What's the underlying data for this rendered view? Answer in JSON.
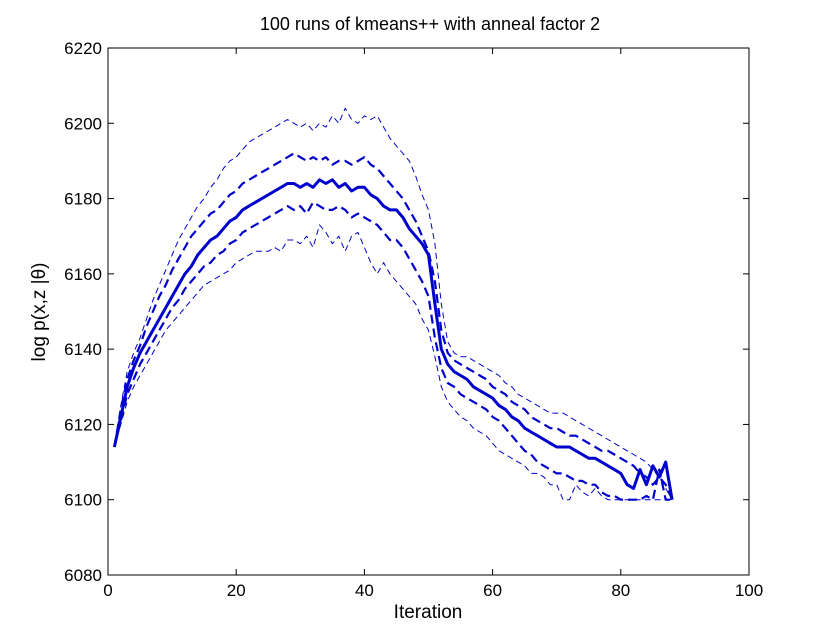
{
  "chart_data": {
    "type": "line",
    "title": "100 runs of kmeans++ with anneal factor 2",
    "xlabel": "Iteration",
    "ylabel": "log p(x,z |θ)",
    "xlim": [
      0,
      100
    ],
    "ylim": [
      6080,
      6220
    ],
    "xticks": [
      "0",
      "20",
      "40",
      "60",
      "80",
      "100"
    ],
    "yticks": [
      "6080",
      "6100",
      "6120",
      "6140",
      "6160",
      "6180",
      "6200",
      "6220"
    ],
    "grid": false,
    "legend": "none",
    "color": "#0000cc",
    "series": [
      {
        "style": "outer-dashed-thin",
        "x": [
          1,
          2,
          3,
          4,
          5,
          6,
          7,
          8,
          9,
          10,
          11,
          12,
          13,
          14,
          15,
          16,
          17,
          18,
          19,
          20,
          21,
          22,
          23,
          24,
          25,
          26,
          27,
          28,
          29,
          30,
          31,
          32,
          33,
          34,
          35,
          36,
          37,
          38,
          39,
          40,
          41,
          42,
          43,
          44,
          45,
          46,
          47,
          48,
          49,
          50,
          51,
          52,
          53,
          54,
          55,
          56,
          57,
          58,
          59,
          60,
          61,
          62,
          63,
          64,
          65,
          66,
          67,
          68,
          69,
          70,
          71,
          72,
          73,
          74,
          75,
          76,
          77,
          78,
          79,
          80,
          81,
          82,
          83,
          84,
          85,
          86,
          87,
          88
        ],
        "y": [
          6114,
          6125,
          6134,
          6139,
          6143,
          6148,
          6153,
          6157,
          6161,
          6165,
          6169,
          6172,
          6175,
          6178,
          6180,
          6183,
          6185,
          6188,
          6190,
          6191,
          6193,
          6195,
          6196,
          6197,
          6198,
          6199,
          6200,
          6201,
          6200,
          6199,
          6200,
          6198,
          6200,
          6199,
          6202,
          6200,
          6204,
          6201,
          6200,
          6202,
          6201,
          6202,
          6199,
          6196,
          6194,
          6192,
          6190,
          6186,
          6181,
          6177,
          6168,
          6152,
          6142,
          6139,
          6138,
          6138,
          6137,
          6136,
          6135,
          6134,
          6133,
          6131,
          6130,
          6128,
          6127,
          6126,
          6125,
          6124,
          6123,
          6123,
          6123,
          6122,
          6121,
          6120,
          6119,
          6118,
          6117,
          6116,
          6115,
          6114,
          6113,
          6112,
          6111,
          6110,
          6108,
          6106,
          6103,
          6100
        ]
      },
      {
        "style": "inner-dashed-thick",
        "x": [
          1,
          2,
          3,
          4,
          5,
          6,
          7,
          8,
          9,
          10,
          11,
          12,
          13,
          14,
          15,
          16,
          17,
          18,
          19,
          20,
          21,
          22,
          23,
          24,
          25,
          26,
          27,
          28,
          29,
          30,
          31,
          32,
          33,
          34,
          35,
          36,
          37,
          38,
          39,
          40,
          41,
          42,
          43,
          44,
          45,
          46,
          47,
          48,
          49,
          50,
          51,
          52,
          53,
          54,
          55,
          56,
          57,
          58,
          59,
          60,
          61,
          62,
          63,
          64,
          65,
          66,
          67,
          68,
          69,
          70,
          71,
          72,
          73,
          74,
          75,
          76,
          77,
          78,
          79,
          80,
          81,
          82,
          83,
          84,
          85,
          86,
          87,
          88
        ],
        "y": [
          6114,
          6124,
          6132,
          6137,
          6141,
          6146,
          6150,
          6154,
          6157,
          6161,
          6164,
          6167,
          6170,
          6172,
          6174,
          6176,
          6177,
          6179,
          6181,
          6182,
          6184,
          6185,
          6186,
          6187,
          6188,
          6189,
          6190,
          6191,
          6192,
          6191,
          6190,
          6191,
          6190,
          6191,
          6189,
          6190,
          6190,
          6189,
          6190,
          6191,
          6189,
          6188,
          6186,
          6184,
          6182,
          6180,
          6177,
          6174,
          6170,
          6166,
          6158,
          6145,
          6139,
          6137,
          6136,
          6135,
          6134,
          6133,
          6132,
          6130,
          6129,
          6128,
          6126,
          6125,
          6124,
          6122,
          6121,
          6120,
          6119,
          6119,
          6118,
          6117,
          6117,
          6116,
          6115,
          6114,
          6113,
          6113,
          6112,
          6111,
          6110,
          6109,
          6107,
          6106,
          6104,
          6106,
          6104,
          6100
        ]
      },
      {
        "style": "mean-solid-thick",
        "x": [
          1,
          2,
          3,
          4,
          5,
          6,
          7,
          8,
          9,
          10,
          11,
          12,
          13,
          14,
          15,
          16,
          17,
          18,
          19,
          20,
          21,
          22,
          23,
          24,
          25,
          26,
          27,
          28,
          29,
          30,
          31,
          32,
          33,
          34,
          35,
          36,
          37,
          38,
          39,
          40,
          41,
          42,
          43,
          44,
          45,
          46,
          47,
          48,
          49,
          50,
          51,
          52,
          53,
          54,
          55,
          56,
          57,
          58,
          59,
          60,
          61,
          62,
          63,
          64,
          65,
          66,
          67,
          68,
          69,
          70,
          71,
          72,
          73,
          74,
          75,
          76,
          77,
          78,
          79,
          80,
          81,
          82,
          83,
          84,
          85,
          86,
          87,
          88
        ],
        "y": [
          6114,
          6122,
          6130,
          6135,
          6139,
          6142,
          6145,
          6148,
          6151,
          6154,
          6157,
          6160,
          6162,
          6165,
          6167,
          6169,
          6170,
          6172,
          6174,
          6175,
          6177,
          6178,
          6179,
          6180,
          6181,
          6182,
          6183,
          6184,
          6184,
          6183,
          6184,
          6183,
          6185,
          6184,
          6185,
          6183,
          6184,
          6182,
          6183,
          6183,
          6181,
          6180,
          6178,
          6177,
          6177,
          6175,
          6172,
          6170,
          6168,
          6165,
          6152,
          6140,
          6136,
          6134,
          6133,
          6132,
          6130,
          6129,
          6128,
          6127,
          6125,
          6124,
          6122,
          6121,
          6119,
          6118,
          6117,
          6116,
          6115,
          6114,
          6114,
          6114,
          6113,
          6112,
          6111,
          6111,
          6110,
          6109,
          6108,
          6107,
          6104,
          6103,
          6108,
          6104,
          6109,
          6106,
          6110,
          6100
        ]
      },
      {
        "style": "inner-dashed-thick",
        "x": [
          1,
          2,
          3,
          4,
          5,
          6,
          7,
          8,
          9,
          10,
          11,
          12,
          13,
          14,
          15,
          16,
          17,
          18,
          19,
          20,
          21,
          22,
          23,
          24,
          25,
          26,
          27,
          28,
          29,
          30,
          31,
          32,
          33,
          34,
          35,
          36,
          37,
          38,
          39,
          40,
          41,
          42,
          43,
          44,
          45,
          46,
          47,
          48,
          49,
          50,
          51,
          52,
          53,
          54,
          55,
          56,
          57,
          58,
          59,
          60,
          61,
          62,
          63,
          64,
          65,
          66,
          67,
          68,
          69,
          70,
          71,
          72,
          73,
          74,
          75,
          76,
          77,
          78,
          79,
          80,
          81,
          82,
          83,
          84,
          85,
          86,
          87,
          88
        ],
        "y": [
          6114,
          6121,
          6128,
          6132,
          6136,
          6139,
          6142,
          6145,
          6148,
          6151,
          6153,
          6156,
          6158,
          6160,
          6162,
          6163,
          6165,
          6166,
          6168,
          6169,
          6171,
          6172,
          6173,
          6174,
          6175,
          6176,
          6177,
          6178,
          6177,
          6178,
          6176,
          6179,
          6178,
          6177,
          6177,
          6178,
          6177,
          6175,
          6176,
          6175,
          6174,
          6173,
          6171,
          6169,
          6169,
          6167,
          6164,
          6161,
          6158,
          6154,
          6143,
          6135,
          6131,
          6130,
          6128,
          6127,
          6126,
          6125,
          6124,
          6122,
          6121,
          6119,
          6117,
          6115,
          6113,
          6112,
          6110,
          6109,
          6108,
          6107,
          6107,
          6106,
          6105,
          6105,
          6104,
          6104,
          6102,
          6101,
          6101,
          6100,
          6100,
          6100,
          6100,
          6101,
          6100,
          6108,
          6100,
          6100
        ]
      },
      {
        "style": "outer-dashed-thin",
        "x": [
          1,
          2,
          3,
          4,
          5,
          6,
          7,
          8,
          9,
          10,
          11,
          12,
          13,
          14,
          15,
          16,
          17,
          18,
          19,
          20,
          21,
          22,
          23,
          24,
          25,
          26,
          27,
          28,
          29,
          30,
          31,
          32,
          33,
          34,
          35,
          36,
          37,
          38,
          39,
          40,
          41,
          42,
          43,
          44,
          45,
          46,
          47,
          48,
          49,
          50,
          51,
          52,
          53,
          54,
          55,
          56,
          57,
          58,
          59,
          60,
          61,
          62,
          63,
          64,
          65,
          66,
          67,
          68,
          69,
          70,
          71,
          72,
          73,
          74,
          75,
          76,
          77,
          78,
          79,
          80,
          81,
          82,
          83,
          84,
          85,
          86,
          87,
          88
        ],
        "y": [
          6114,
          6120,
          6126,
          6130,
          6133,
          6136,
          6139,
          6142,
          6145,
          6147,
          6149,
          6151,
          6153,
          6155,
          6157,
          6158,
          6159,
          6160,
          6161,
          6163,
          6164,
          6165,
          6166,
          6166,
          6166,
          6167,
          6166,
          6169,
          6169,
          6168,
          6170,
          6167,
          6173,
          6171,
          6168,
          6170,
          6166,
          6170,
          6171,
          6167,
          6163,
          6160,
          6163,
          6160,
          6158,
          6156,
          6154,
          6152,
          6148,
          6145,
          6138,
          6130,
          6126,
          6124,
          6122,
          6121,
          6119,
          6118,
          6117,
          6115,
          6113,
          6112,
          6111,
          6110,
          6109,
          6107,
          6107,
          6106,
          6104,
          6104,
          6100,
          6100,
          6104,
          6102,
          6101,
          6103,
          6101,
          6100,
          6100,
          6100,
          6100,
          6100,
          6100,
          6100,
          6100,
          6100,
          6100,
          6100
        ]
      }
    ]
  }
}
